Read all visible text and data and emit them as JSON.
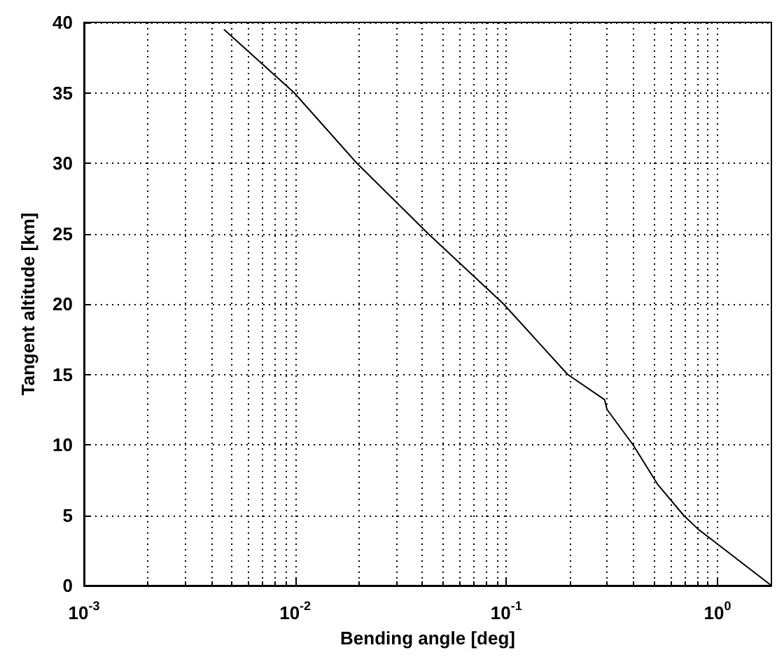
{
  "chart_data": {
    "type": "line",
    "xlabel": "Bending angle [deg]",
    "ylabel": "Tangent altitude [km]",
    "x": [
      0.0046,
      0.0099,
      0.0196,
      0.0426,
      0.097,
      0.195,
      0.292,
      0.3,
      0.398,
      0.52,
      0.69,
      0.81,
      0.99,
      1.8
    ],
    "series": [
      {
        "color": "#000000",
        "values": [
          39.5,
          35,
          30,
          25,
          20,
          15,
          13.2,
          12.5,
          10,
          7.2,
          5,
          4,
          3,
          0
        ]
      }
    ],
    "log": "x",
    "xlim": [
      0.001,
      1.8
    ],
    "xticks": [
      {
        "value": 0.001,
        "label": "10$^{-3}$"
      },
      {
        "value": 0.01,
        "label": "10$^{-2}$"
      },
      {
        "value": 0.1,
        "label": "10$^{-1}$"
      },
      {
        "value": 1,
        "label": "10$^{0}$"
      }
    ],
    "ylim": [
      0,
      40
    ],
    "yticks": [
      0,
      5,
      10,
      15,
      20,
      25,
      30,
      35,
      40
    ],
    "grid": true,
    "marker": "none",
    "line_style": "solid",
    "legend": false
  }
}
